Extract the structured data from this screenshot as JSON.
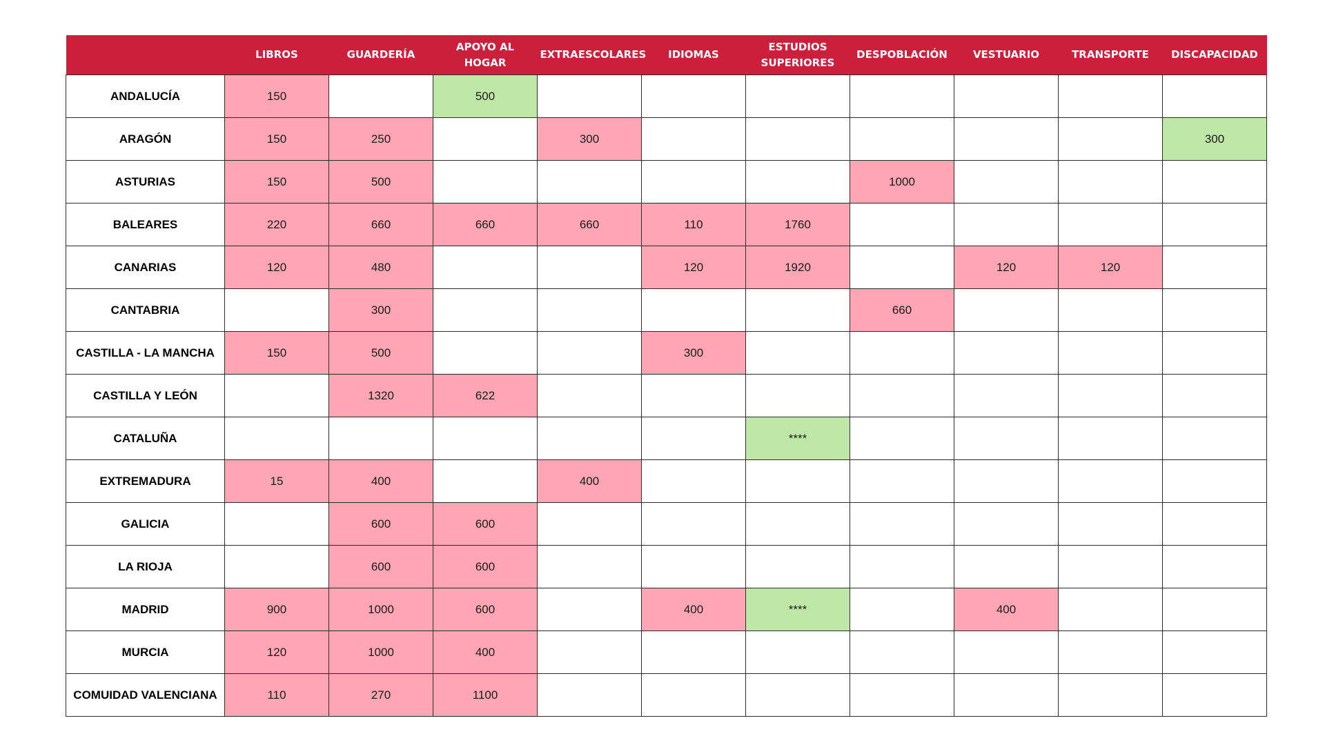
{
  "colors": {
    "header_bg": "#cc1f3b",
    "header_text": "#ffffff",
    "pink": "#fea6b4",
    "green": "#bfe8a7",
    "border": "#2b2b2b"
  },
  "header": {
    "corner": "",
    "columns": [
      "LIBROS",
      "GUARDERÍA",
      "APOYO AL HOGAR",
      "EXTRAESCOLARES",
      "IDIOMAS",
      "ESTUDIOS SUPERIORES",
      "DESPOBLACIÓN",
      "VESTUARIO",
      "TRANSPORTE",
      "DISCAPACIDAD"
    ]
  },
  "rows": [
    {
      "region": "ANDALUCÍA",
      "cells": [
        {
          "v": "150",
          "c": "pink"
        },
        {
          "v": "",
          "c": ""
        },
        {
          "v": "500",
          "c": "green"
        },
        {
          "v": "",
          "c": ""
        },
        {
          "v": "",
          "c": ""
        },
        {
          "v": "",
          "c": ""
        },
        {
          "v": "",
          "c": ""
        },
        {
          "v": "",
          "c": ""
        },
        {
          "v": "",
          "c": ""
        },
        {
          "v": "",
          "c": ""
        }
      ]
    },
    {
      "region": "ARAGÓN",
      "cells": [
        {
          "v": "150",
          "c": "pink"
        },
        {
          "v": "250",
          "c": "pink"
        },
        {
          "v": "",
          "c": ""
        },
        {
          "v": "300",
          "c": "pink"
        },
        {
          "v": "",
          "c": ""
        },
        {
          "v": "",
          "c": ""
        },
        {
          "v": "",
          "c": ""
        },
        {
          "v": "",
          "c": ""
        },
        {
          "v": "",
          "c": ""
        },
        {
          "v": "300",
          "c": "green"
        }
      ]
    },
    {
      "region": "ASTURIAS",
      "cells": [
        {
          "v": "150",
          "c": "pink"
        },
        {
          "v": "500",
          "c": "pink"
        },
        {
          "v": "",
          "c": ""
        },
        {
          "v": "",
          "c": ""
        },
        {
          "v": "",
          "c": ""
        },
        {
          "v": "",
          "c": ""
        },
        {
          "v": "1000",
          "c": "pink"
        },
        {
          "v": "",
          "c": ""
        },
        {
          "v": "",
          "c": ""
        },
        {
          "v": "",
          "c": ""
        }
      ]
    },
    {
      "region": "BALEARES",
      "cells": [
        {
          "v": "220",
          "c": "pink"
        },
        {
          "v": "660",
          "c": "pink"
        },
        {
          "v": "660",
          "c": "pink"
        },
        {
          "v": "660",
          "c": "pink"
        },
        {
          "v": "110",
          "c": "pink"
        },
        {
          "v": "1760",
          "c": "pink"
        },
        {
          "v": "",
          "c": ""
        },
        {
          "v": "",
          "c": ""
        },
        {
          "v": "",
          "c": ""
        },
        {
          "v": "",
          "c": ""
        }
      ]
    },
    {
      "region": "CANARIAS",
      "cells": [
        {
          "v": "120",
          "c": "pink"
        },
        {
          "v": "480",
          "c": "pink"
        },
        {
          "v": "",
          "c": ""
        },
        {
          "v": "",
          "c": ""
        },
        {
          "v": "120",
          "c": "pink"
        },
        {
          "v": "1920",
          "c": "pink"
        },
        {
          "v": "",
          "c": ""
        },
        {
          "v": "120",
          "c": "pink"
        },
        {
          "v": "120",
          "c": "pink"
        },
        {
          "v": "",
          "c": ""
        }
      ]
    },
    {
      "region": "CANTABRIA",
      "cells": [
        {
          "v": "",
          "c": ""
        },
        {
          "v": "300",
          "c": "pink"
        },
        {
          "v": "",
          "c": ""
        },
        {
          "v": "",
          "c": ""
        },
        {
          "v": "",
          "c": ""
        },
        {
          "v": "",
          "c": ""
        },
        {
          "v": "660",
          "c": "pink"
        },
        {
          "v": "",
          "c": ""
        },
        {
          "v": "",
          "c": ""
        },
        {
          "v": "",
          "c": ""
        }
      ]
    },
    {
      "region": "CASTILLA - LA MANCHA",
      "cells": [
        {
          "v": "150",
          "c": "pink"
        },
        {
          "v": "500",
          "c": "pink"
        },
        {
          "v": "",
          "c": ""
        },
        {
          "v": "",
          "c": ""
        },
        {
          "v": "300",
          "c": "pink"
        },
        {
          "v": "",
          "c": ""
        },
        {
          "v": "",
          "c": ""
        },
        {
          "v": "",
          "c": ""
        },
        {
          "v": "",
          "c": ""
        },
        {
          "v": "",
          "c": ""
        }
      ]
    },
    {
      "region": "CASTILLA Y LEÓN",
      "cells": [
        {
          "v": "",
          "c": ""
        },
        {
          "v": "1320",
          "c": "pink"
        },
        {
          "v": "622",
          "c": "pink"
        },
        {
          "v": "",
          "c": ""
        },
        {
          "v": "",
          "c": ""
        },
        {
          "v": "",
          "c": ""
        },
        {
          "v": "",
          "c": ""
        },
        {
          "v": "",
          "c": ""
        },
        {
          "v": "",
          "c": ""
        },
        {
          "v": "",
          "c": ""
        }
      ]
    },
    {
      "region": "CATALUÑA",
      "cells": [
        {
          "v": "",
          "c": ""
        },
        {
          "v": "",
          "c": ""
        },
        {
          "v": "",
          "c": ""
        },
        {
          "v": "",
          "c": ""
        },
        {
          "v": "",
          "c": ""
        },
        {
          "v": "****",
          "c": "green"
        },
        {
          "v": "",
          "c": ""
        },
        {
          "v": "",
          "c": ""
        },
        {
          "v": "",
          "c": ""
        },
        {
          "v": "",
          "c": ""
        }
      ]
    },
    {
      "region": "EXTREMADURA",
      "cells": [
        {
          "v": "15",
          "c": "pink"
        },
        {
          "v": "400",
          "c": "pink"
        },
        {
          "v": "",
          "c": ""
        },
        {
          "v": "400",
          "c": "pink"
        },
        {
          "v": "",
          "c": ""
        },
        {
          "v": "",
          "c": ""
        },
        {
          "v": "",
          "c": ""
        },
        {
          "v": "",
          "c": ""
        },
        {
          "v": "",
          "c": ""
        },
        {
          "v": "",
          "c": ""
        }
      ]
    },
    {
      "region": "GALICIA",
      "cells": [
        {
          "v": "",
          "c": ""
        },
        {
          "v": "600",
          "c": "pink"
        },
        {
          "v": "600",
          "c": "pink"
        },
        {
          "v": "",
          "c": ""
        },
        {
          "v": "",
          "c": ""
        },
        {
          "v": "",
          "c": ""
        },
        {
          "v": "",
          "c": ""
        },
        {
          "v": "",
          "c": ""
        },
        {
          "v": "",
          "c": ""
        },
        {
          "v": "",
          "c": ""
        }
      ]
    },
    {
      "region": "LA RIOJA",
      "cells": [
        {
          "v": "",
          "c": ""
        },
        {
          "v": "600",
          "c": "pink"
        },
        {
          "v": "600",
          "c": "pink"
        },
        {
          "v": "",
          "c": ""
        },
        {
          "v": "",
          "c": ""
        },
        {
          "v": "",
          "c": ""
        },
        {
          "v": "",
          "c": ""
        },
        {
          "v": "",
          "c": ""
        },
        {
          "v": "",
          "c": ""
        },
        {
          "v": "",
          "c": ""
        }
      ]
    },
    {
      "region": "MADRID",
      "cells": [
        {
          "v": "900",
          "c": "pink"
        },
        {
          "v": "1000",
          "c": "pink"
        },
        {
          "v": "600",
          "c": "pink"
        },
        {
          "v": "",
          "c": ""
        },
        {
          "v": "400",
          "c": "pink"
        },
        {
          "v": "****",
          "c": "green"
        },
        {
          "v": "",
          "c": ""
        },
        {
          "v": "400",
          "c": "pink"
        },
        {
          "v": "",
          "c": ""
        },
        {
          "v": "",
          "c": ""
        }
      ]
    },
    {
      "region": "MURCIA",
      "cells": [
        {
          "v": "120",
          "c": "pink"
        },
        {
          "v": "1000",
          "c": "pink"
        },
        {
          "v": "400",
          "c": "pink"
        },
        {
          "v": "",
          "c": ""
        },
        {
          "v": "",
          "c": ""
        },
        {
          "v": "",
          "c": ""
        },
        {
          "v": "",
          "c": ""
        },
        {
          "v": "",
          "c": ""
        },
        {
          "v": "",
          "c": ""
        },
        {
          "v": "",
          "c": ""
        }
      ]
    },
    {
      "region": "COMUIDAD VALENCIANA",
      "cells": [
        {
          "v": "110",
          "c": "pink"
        },
        {
          "v": "270",
          "c": "pink"
        },
        {
          "v": "1100",
          "c": "pink"
        },
        {
          "v": "",
          "c": ""
        },
        {
          "v": "",
          "c": ""
        },
        {
          "v": "",
          "c": ""
        },
        {
          "v": "",
          "c": ""
        },
        {
          "v": "",
          "c": ""
        },
        {
          "v": "",
          "c": ""
        },
        {
          "v": "",
          "c": ""
        }
      ]
    }
  ]
}
